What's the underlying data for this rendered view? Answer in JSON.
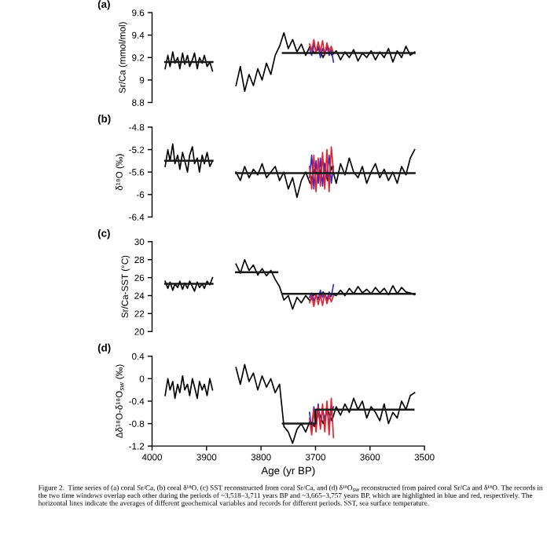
{
  "chart_data": [
    {
      "type": "line",
      "title": "(a)",
      "ylabel": "Sr/Ca (mmol/mol)",
      "xlim": [
        4000,
        3500
      ],
      "ylim": [
        8.8,
        9.6
      ],
      "yticks": [
        8.8,
        9,
        9.2,
        9.4,
        9.6
      ],
      "tick_labels": "y",
      "grid": false,
      "legend": false,
      "line_style": "solid",
      "marker": "none",
      "series": [
        {
          "color": "#000000",
          "x": [
            3976,
            3971,
            3967,
            3962,
            3958,
            3953,
            3949,
            3944,
            3940,
            3935,
            3931,
            3926,
            3922,
            3917,
            3913,
            3908,
            3904,
            3899,
            3894,
            3889,
            3870,
            3846,
            3838,
            3830,
            3822,
            3814,
            3806,
            3798,
            3790,
            3782,
            3774,
            3766,
            3758,
            3750,
            3742,
            3734,
            3726,
            3718,
            3710,
            3702,
            3694,
            3686,
            3678,
            3670,
            3662,
            3654,
            3646,
            3638,
            3630,
            3622,
            3614,
            3606,
            3598,
            3590,
            3582,
            3574,
            3566,
            3558,
            3550,
            3542,
            3534,
            3526,
            3518
          ],
          "values": [
            9.1,
            9.22,
            9.12,
            9.25,
            9.15,
            9.2,
            9.1,
            9.24,
            9.14,
            9.22,
            9.12,
            9.18,
            9.24,
            9.1,
            9.2,
            9.15,
            9.22,
            9.12,
            9.16,
            9.08,
            null,
            8.95,
            9.12,
            8.9,
            9.05,
            8.95,
            9.1,
            9.0,
            9.15,
            9.05,
            9.22,
            9.3,
            9.42,
            9.28,
            9.36,
            9.25,
            9.32,
            9.22,
            9.3,
            9.24,
            9.28,
            9.2,
            9.3,
            9.22,
            9.26,
            9.18,
            9.25,
            9.2,
            9.27,
            9.17,
            9.24,
            9.2,
            9.26,
            9.18,
            9.25,
            9.2,
            9.28,
            9.16,
            9.26,
            9.2,
            9.3,
            9.22,
            9.25
          ]
        },
        {
          "color": "#2b2bd0",
          "x": [
            3711,
            3707,
            3703,
            3699,
            3695,
            3691,
            3687,
            3683,
            3679,
            3675,
            3671,
            3667
          ],
          "values": [
            9.28,
            9.22,
            9.32,
            9.25,
            9.3,
            9.2,
            9.28,
            9.24,
            9.3,
            9.22,
            9.27,
            9.16
          ]
        },
        {
          "color": "#e8202a",
          "x": [
            3711,
            3707,
            3703,
            3699,
            3695,
            3691,
            3687,
            3683,
            3679,
            3675,
            3671,
            3667
          ],
          "values": [
            9.32,
            9.26,
            9.36,
            9.24,
            9.34,
            9.25,
            9.35,
            9.22,
            9.33,
            9.25,
            9.3,
            9.24
          ]
        },
        {
          "color": "#1a1a1a",
          "x": [
            3976,
            3889,
            3870,
            3760,
            3518
          ],
          "values": [
            9.16,
            9.16,
            null,
            9.24,
            9.24
          ]
        }
      ]
    },
    {
      "type": "line",
      "title": "(b)",
      "ylabel": "δ¹⁸O (‰)",
      "xlim": [
        4000,
        3500
      ],
      "ylim": [
        -6.4,
        -4.8
      ],
      "yticks": [
        -6.4,
        -6,
        -5.6,
        -5.2,
        -4.8
      ],
      "tick_labels": "y",
      "grid": false,
      "legend": false,
      "line_style": "solid",
      "marker": "none",
      "series": [
        {
          "color": "#000000",
          "x": [
            3976,
            3971,
            3967,
            3962,
            3958,
            3953,
            3949,
            3944,
            3940,
            3935,
            3931,
            3926,
            3922,
            3917,
            3913,
            3908,
            3904,
            3899,
            3894,
            3889,
            3870,
            3846,
            3838,
            3830,
            3822,
            3814,
            3806,
            3798,
            3790,
            3782,
            3774,
            3766,
            3758,
            3750,
            3742,
            3734,
            3726,
            3718,
            3710,
            3702,
            3694,
            3686,
            3678,
            3670,
            3662,
            3654,
            3646,
            3638,
            3630,
            3622,
            3614,
            3606,
            3598,
            3590,
            3582,
            3574,
            3566,
            3558,
            3550,
            3542,
            3534,
            3526,
            3518
          ],
          "values": [
            -5.5,
            -5.2,
            -5.4,
            -5.1,
            -5.45,
            -5.3,
            -5.55,
            -5.25,
            -5.4,
            -5.6,
            -5.3,
            -5.15,
            -5.45,
            -5.35,
            -5.6,
            -5.3,
            -5.45,
            -5.25,
            -5.5,
            -5.4,
            null,
            -5.6,
            -5.75,
            -5.5,
            -5.7,
            -5.55,
            -5.65,
            -5.45,
            -5.7,
            -5.6,
            -5.5,
            -5.75,
            -5.6,
            -5.9,
            -5.7,
            -6.05,
            -5.75,
            -5.6,
            -5.8,
            -5.55,
            -5.7,
            -5.4,
            -5.75,
            -5.5,
            -5.8,
            -5.45,
            -5.65,
            -5.35,
            -5.6,
            -5.7,
            -5.5,
            -5.8,
            -5.6,
            -5.45,
            -5.7,
            -5.55,
            -5.75,
            -5.6,
            -5.8,
            -5.5,
            -5.65,
            -5.35,
            -5.2
          ]
        },
        {
          "color": "#2b2bd0",
          "x": [
            3711,
            3707,
            3703,
            3699,
            3695,
            3691,
            3687,
            3683,
            3679,
            3675,
            3671,
            3667
          ],
          "values": [
            -5.7,
            -5.3,
            -5.9,
            -5.4,
            -5.8,
            -5.35,
            -5.85,
            -5.45,
            -5.7,
            -5.3,
            -5.8,
            -5.5
          ]
        },
        {
          "color": "#e8202a",
          "x": [
            3711,
            3707,
            3703,
            3699,
            3695,
            3691,
            3687,
            3683,
            3679,
            3675,
            3671,
            3667
          ],
          "values": [
            -5.5,
            -5.9,
            -5.3,
            -5.95,
            -5.35,
            -5.85,
            -5.25,
            -5.9,
            -5.2,
            -5.95,
            -5.15,
            -5.6
          ]
        },
        {
          "color": "#1a1a1a",
          "x": [
            3976,
            3889,
            3870,
            3846,
            3518
          ],
          "values": [
            -5.4,
            -5.4,
            null,
            -5.62,
            -5.62
          ]
        }
      ]
    },
    {
      "type": "line",
      "title": "(c)",
      "ylabel": "Sr/Ca-SST (°C)",
      "xlim": [
        4000,
        3500
      ],
      "ylim": [
        20,
        30
      ],
      "yticks": [
        20,
        22,
        24,
        26,
        28,
        30
      ],
      "tick_labels": "y",
      "grid": false,
      "legend": false,
      "line_style": "solid",
      "marker": "none",
      "series": [
        {
          "color": "#000000",
          "x": [
            3976,
            3971,
            3967,
            3962,
            3958,
            3953,
            3949,
            3944,
            3940,
            3935,
            3931,
            3926,
            3922,
            3917,
            3913,
            3908,
            3904,
            3899,
            3894,
            3889,
            3870,
            3846,
            3838,
            3830,
            3822,
            3814,
            3806,
            3798,
            3790,
            3782,
            3774,
            3766,
            3758,
            3750,
            3742,
            3734,
            3726,
            3718,
            3710,
            3702,
            3694,
            3686,
            3678,
            3670,
            3662,
            3654,
            3646,
            3638,
            3630,
            3622,
            3614,
            3606,
            3598,
            3590,
            3582,
            3574,
            3566,
            3558,
            3550,
            3542,
            3534,
            3526,
            3518
          ],
          "values": [
            25.6,
            24.8,
            25.5,
            24.6,
            25.3,
            24.9,
            25.6,
            24.7,
            25.4,
            24.8,
            25.6,
            25.0,
            24.5,
            25.5,
            24.9,
            25.3,
            24.8,
            25.6,
            25.2,
            26.0,
            null,
            27.5,
            26.5,
            28.0,
            26.8,
            27.4,
            26.3,
            27.0,
            26.2,
            26.8,
            25.8,
            25.0,
            23.5,
            24.0,
            22.5,
            23.8,
            23.2,
            24.0,
            23.4,
            24.2,
            23.6,
            24.4,
            23.5,
            24.2,
            24.0,
            24.6,
            24.0,
            24.8,
            24.2,
            25.0,
            24.3,
            24.7,
            24.2,
            24.9,
            24.3,
            24.8,
            24.1,
            25.1,
            24.2,
            24.9,
            24.4,
            24.3,
            24.1
          ]
        },
        {
          "color": "#2b2bd0",
          "x": [
            3711,
            3707,
            3703,
            3699,
            3695,
            3691,
            3687,
            3683,
            3679,
            3675,
            3671,
            3667
          ],
          "values": [
            23.8,
            24.3,
            23.4,
            24.1,
            23.6,
            24.6,
            23.8,
            24.2,
            23.5,
            24.4,
            23.9,
            25.2
          ]
        },
        {
          "color": "#e8202a",
          "x": [
            3711,
            3707,
            3703,
            3699,
            3695,
            3691,
            3687,
            3683,
            3679,
            3675,
            3671,
            3667
          ],
          "values": [
            23.2,
            24.0,
            22.8,
            24.2,
            23.0,
            24.1,
            22.9,
            24.3,
            23.1,
            24.0,
            23.3,
            24.0
          ]
        },
        {
          "color": "#1a1a1a",
          "x": [
            3976,
            3889,
            3870,
            3846,
            3770,
            3765,
            3760,
            3518
          ],
          "values": [
            25.3,
            25.3,
            null,
            26.6,
            26.6,
            null,
            24.2,
            24.2
          ]
        }
      ]
    },
    {
      "type": "line",
      "title": "(d)",
      "ylabel": "Δδ¹⁸O-δ¹⁸O$_{sw}$ (‰)",
      "xlabel": "Age (yr BP)",
      "xlim": [
        4000,
        3500
      ],
      "xticks": [
        4000,
        3900,
        3800,
        3700,
        3600,
        3500
      ],
      "ylim": [
        -1.2,
        0.4
      ],
      "yticks": [
        -1.2,
        -0.8,
        -0.4,
        0,
        0.4
      ],
      "grid": false,
      "legend": false,
      "line_style": "solid",
      "marker": "none",
      "series": [
        {
          "color": "#000000",
          "x": [
            3976,
            3971,
            3967,
            3962,
            3958,
            3953,
            3949,
            3944,
            3940,
            3935,
            3931,
            3926,
            3922,
            3917,
            3913,
            3908,
            3904,
            3899,
            3894,
            3889,
            3870,
            3846,
            3838,
            3830,
            3822,
            3814,
            3806,
            3798,
            3790,
            3782,
            3774,
            3766,
            3758,
            3750,
            3742,
            3734,
            3726,
            3718,
            3710,
            3702,
            3694,
            3686,
            3678,
            3670,
            3662,
            3654,
            3646,
            3638,
            3630,
            3622,
            3614,
            3606,
            3598,
            3590,
            3582,
            3574,
            3566,
            3558,
            3550,
            3542,
            3534,
            3526,
            3518
          ],
          "values": [
            -0.3,
            0.0,
            -0.2,
            -0.05,
            -0.35,
            -0.1,
            -0.25,
            0.05,
            -0.2,
            -0.1,
            -0.3,
            0.0,
            -0.15,
            -0.35,
            -0.05,
            -0.2,
            -0.1,
            -0.3,
            0.0,
            -0.2,
            null,
            0.2,
            -0.1,
            0.25,
            -0.05,
            0.1,
            -0.2,
            0.05,
            -0.15,
            0.0,
            -0.25,
            -0.1,
            -0.85,
            -0.95,
            -1.15,
            -0.9,
            -0.8,
            -0.95,
            -0.75,
            -0.85,
            -0.6,
            -0.8,
            -0.55,
            -0.75,
            -0.5,
            -0.65,
            -0.45,
            -0.6,
            -0.35,
            -0.55,
            -0.4,
            -0.7,
            -0.5,
            -0.6,
            -0.75,
            -0.45,
            -0.8,
            -0.6,
            -0.7,
            -0.4,
            -0.55,
            -0.3,
            -0.25
          ]
        },
        {
          "color": "#2b2bd0",
          "x": [
            3711,
            3707,
            3703,
            3699,
            3695,
            3691,
            3687,
            3683,
            3679,
            3675,
            3671,
            3667
          ],
          "values": [
            -0.6,
            -0.9,
            -0.5,
            -0.8,
            -0.45,
            -0.85,
            -0.55,
            -0.75,
            -0.5,
            -0.8,
            -0.6,
            -0.5
          ]
        },
        {
          "color": "#e8202a",
          "x": [
            3711,
            3707,
            3703,
            3699,
            3695,
            3691,
            3687,
            3683,
            3679,
            3675,
            3671,
            3667
          ],
          "values": [
            -0.7,
            -1.0,
            -0.55,
            -0.95,
            -0.5,
            -0.9,
            -0.45,
            -0.95,
            -0.4,
            -1.0,
            -0.35,
            -1.05
          ]
        },
        {
          "color": "#1a1a1a",
          "x": [
            3760,
            3700,
            3700,
            3520
          ],
          "values": [
            -0.8,
            -0.8,
            -0.55,
            -0.55
          ]
        }
      ],
      "annotations": [
        "Figure 2.  Time series of (a) coral Sr/Ca, (b) coral δ¹⁸O, (c) SST reconstructed from coral Sr/Ca, and (d) δ¹⁸O$_{sw}$ reconstructed from paired coral Sr/Ca and δ¹⁸O. The records in the two time windows overlap each other during the periods of ~3,518–3,711 years BP and ~3,665–3,757 years BP, which are highlighted in blue and red, respectively. The horizontal lines indicate the averages of different geochemical variables and records for different periods. SST, sea surface temperature."
      ]
    }
  ]
}
